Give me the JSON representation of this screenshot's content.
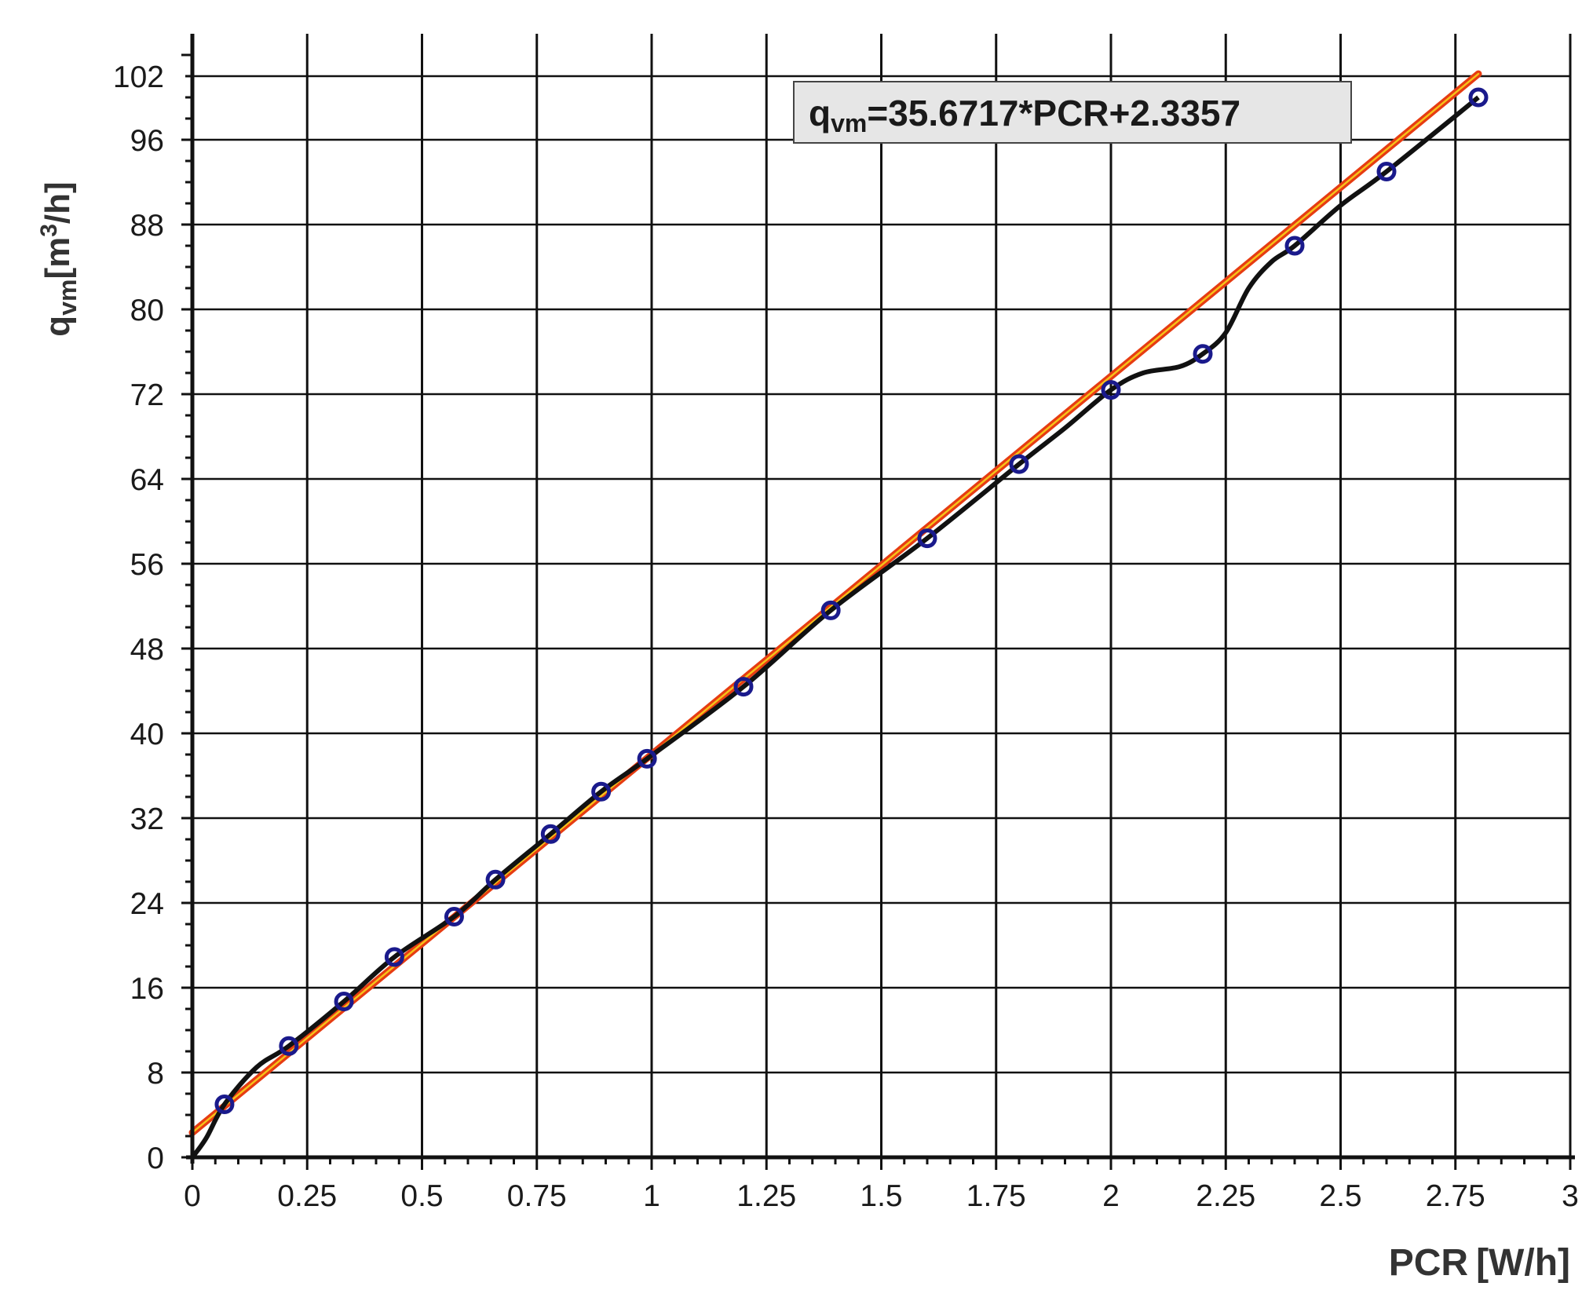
{
  "chart_data": {
    "type": "scatter",
    "title": "",
    "xlabel": "PCR [W/h]",
    "xlabel_parts": {
      "main": "PCR",
      "unit": "[W/h]"
    },
    "ylabel": "qvm[m3/h]",
    "ylabel_parts": {
      "q": "q",
      "sub": "vm",
      "unit_a": "[m",
      "sup": "3",
      "unit_b": "/h]"
    },
    "xlim": [
      0,
      3
    ],
    "ylim": [
      0,
      106
    ],
    "xticks": [
      0,
      0.25,
      0.5,
      0.75,
      1,
      1.25,
      1.5,
      1.75,
      2,
      2.25,
      2.5,
      2.75,
      3
    ],
    "xtick_labels": [
      "0",
      "0.25",
      "0.5",
      "0.75",
      "1",
      "1.25",
      "1.5",
      "1.75",
      "2",
      "2.25",
      "2.5",
      "2.75",
      "3"
    ],
    "yticks": [
      0,
      8,
      16,
      24,
      32,
      40,
      48,
      56,
      64,
      72,
      80,
      88,
      96,
      102
    ],
    "ytick_labels": [
      "0",
      "8",
      "16",
      "24",
      "32",
      "40",
      "48",
      "56",
      "64",
      "72",
      "80",
      "88",
      "96",
      "102"
    ],
    "grid": true,
    "series": [
      {
        "kind": "markers",
        "color": "#1a1a8c",
        "x": [
          0.07,
          0.21,
          0.33,
          0.44,
          0.57,
          0.66,
          0.78,
          0.89,
          0.99,
          1.2,
          1.39,
          1.6,
          1.8,
          2.0,
          2.2,
          2.4,
          2.6,
          2.8
        ],
        "y": [
          5,
          10.5,
          14.7,
          18.9,
          22.7,
          26.2,
          30.5,
          34.5,
          37.6,
          44.4,
          51.6,
          58.4,
          65.4,
          72.4,
          75.8,
          86,
          93,
          100
        ]
      },
      {
        "kind": "curve",
        "color": "#111111",
        "x": [
          0,
          0.03,
          0.07,
          0.14,
          0.21,
          0.33,
          0.44,
          0.57,
          0.66,
          0.78,
          0.89,
          0.99,
          1.2,
          1.39,
          1.6,
          1.8,
          1.9,
          2.0,
          2.07,
          2.15,
          2.2,
          2.25,
          2.3,
          2.35,
          2.4,
          2.5,
          2.6,
          2.8
        ],
        "y": [
          0,
          1.8,
          5,
          8.5,
          10.5,
          14.7,
          18.9,
          22.7,
          26.2,
          30.5,
          34.5,
          37.6,
          44.4,
          51.6,
          58.4,
          65.4,
          68.8,
          72.4,
          74,
          74.6,
          75.8,
          77.8,
          82,
          84.5,
          86,
          89.8,
          93,
          100
        ]
      },
      {
        "kind": "fit",
        "color": "#e63c12",
        "x": [
          0,
          2.8
        ],
        "y": [
          2.3357,
          102.2165
        ]
      }
    ],
    "annotation": {
      "q": "q",
      "sub": "vm",
      "rest": "=35.6717*PCR+2.3357"
    }
  }
}
